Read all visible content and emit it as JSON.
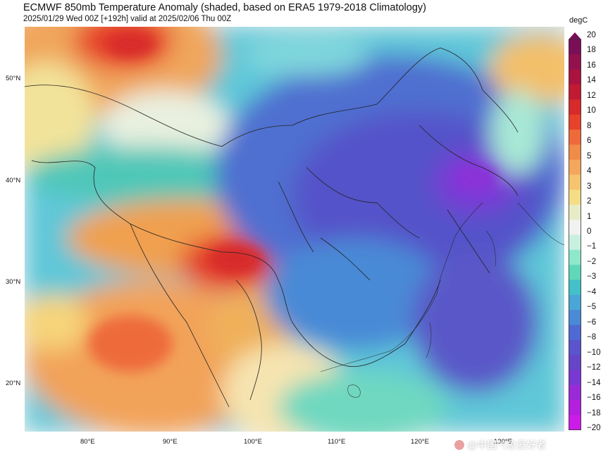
{
  "title": "ECMWF 850mb Temperature Anomaly (shaded, based on ERA5 1979-2018 Climatology)",
  "subtitle": "2025/01/29 Wed 00Z [+192h] valid at 2025/02/06 Thu 00Z",
  "map": {
    "lon_range": [
      72.5,
      137
    ],
    "lat_range": [
      15,
      55
    ],
    "lat_labels": [
      {
        "lat": 50,
        "text": "50°N"
      },
      {
        "lat": 40,
        "text": "40°N"
      },
      {
        "lat": 30,
        "text": "30°N"
      },
      {
        "lat": 20,
        "text": "20°N"
      }
    ],
    "lon_labels": [
      {
        "lon": 80,
        "text": "80°E"
      },
      {
        "lon": 90,
        "text": "90°E"
      },
      {
        "lon": 100,
        "text": "100°E"
      },
      {
        "lon": 110,
        "text": "110°E"
      },
      {
        "lon": 120,
        "text": "120°E"
      },
      {
        "lon": 130,
        "text": "130°E"
      }
    ]
  },
  "colorbar": {
    "unit": "degC",
    "ticks": [
      "20",
      "18",
      "16",
      "14",
      "12",
      "10",
      "8",
      "6",
      "5",
      "4",
      "3",
      "2",
      "1",
      "0",
      "−1",
      "−2",
      "−3",
      "−4",
      "−5",
      "−6",
      "−8",
      "−10",
      "−12",
      "−14",
      "−16",
      "−18",
      "−20"
    ],
    "colors": [
      "#7a0f57",
      "#93124e",
      "#aa1340",
      "#c21a33",
      "#d72a2a",
      "#e6422c",
      "#ee6a3a",
      "#f08b48",
      "#f3a75d",
      "#f6c36e",
      "#f4dd86",
      "#e7ecc7",
      "#f1f1f1",
      "#c8f0df",
      "#8ee8cc",
      "#5fd7b8",
      "#44c0c8",
      "#4aa6d6",
      "#4a8ad6",
      "#4f6ad2",
      "#5a55cc",
      "#6745c8",
      "#7a38d2",
      "#9a2ad8",
      "#b51fde",
      "#cc1be8"
    ]
  },
  "watermark": "@中国气象爱好者"
}
